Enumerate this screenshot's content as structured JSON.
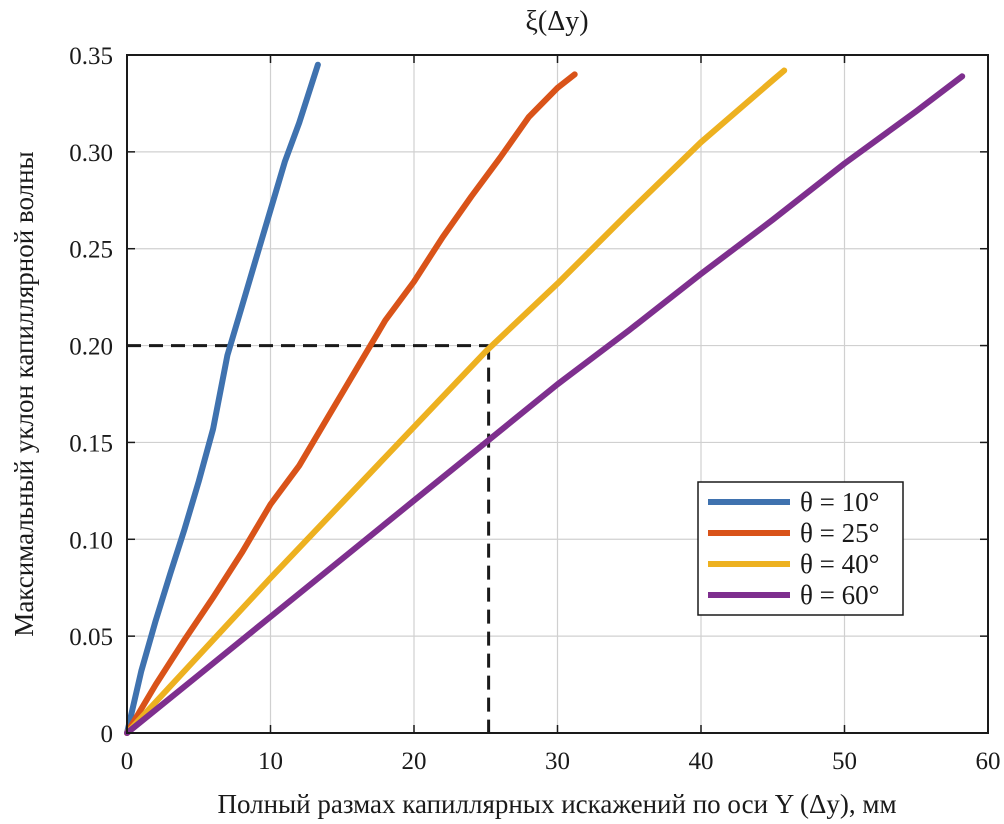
{
  "chart_data": {
    "type": "line",
    "title": "ξ(Δy)",
    "xlabel": "Полный размах капиллярных искажений по оси Y (Δy), мм",
    "ylabel": "Максимальный уклон капиллярной волны",
    "xlim": [
      0,
      60
    ],
    "ylim": [
      0,
      0.35
    ],
    "x_ticks": [
      "0",
      "10",
      "20",
      "30",
      "40",
      "50",
      "60"
    ],
    "y_ticks": [
      "0",
      "0.05",
      "0.10",
      "0.15",
      "0.20",
      "0.25",
      "0.30",
      "0.35"
    ],
    "grid": true,
    "legend_position": "right-middle",
    "series": [
      {
        "name": "θ = 10°",
        "color": "#3f72af",
        "x": [
          0,
          1,
          2,
          3,
          4,
          5,
          6,
          7,
          8,
          9,
          10,
          11,
          12,
          13.3
        ],
        "y": [
          0,
          0.032,
          0.058,
          0.082,
          0.105,
          0.13,
          0.157,
          0.195,
          0.22,
          0.245,
          0.27,
          0.295,
          0.315,
          0.345
        ]
      },
      {
        "name": "θ = 25°",
        "color": "#d95319",
        "x": [
          0,
          2,
          4,
          6,
          8,
          10,
          12,
          14,
          16,
          18,
          20,
          22,
          24,
          26,
          28,
          30,
          31.2
        ],
        "y": [
          0,
          0.025,
          0.048,
          0.07,
          0.093,
          0.118,
          0.138,
          0.163,
          0.188,
          0.213,
          0.233,
          0.256,
          0.277,
          0.297,
          0.318,
          0.333,
          0.34
        ]
      },
      {
        "name": "θ = 40°",
        "color": "#edb120",
        "x": [
          0,
          5,
          10,
          15,
          20,
          25,
          30,
          35,
          40,
          45,
          45.8
        ],
        "y": [
          0,
          0.04,
          0.08,
          0.119,
          0.158,
          0.197,
          0.232,
          0.269,
          0.305,
          0.337,
          0.342
        ]
      },
      {
        "name": "θ = 60°",
        "color": "#7e2f8e",
        "x": [
          0,
          5,
          10,
          15,
          20,
          25,
          30,
          35,
          40,
          45,
          50,
          55,
          58.2
        ],
        "y": [
          0,
          0.03,
          0.06,
          0.09,
          0.12,
          0.15,
          0.18,
          0.208,
          0.237,
          0.265,
          0.294,
          0.321,
          0.339
        ]
      }
    ],
    "annotations": [
      {
        "type": "dashed-guide",
        "x": 25.2,
        "y": 0.2,
        "color": "#1a1a1a"
      }
    ]
  }
}
